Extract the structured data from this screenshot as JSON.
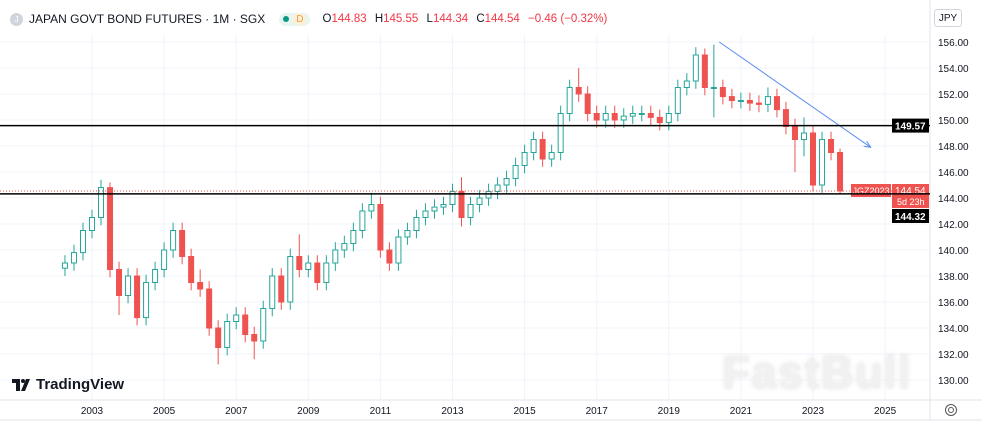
{
  "header": {
    "symbol_icon": "J",
    "title": "JAPAN GOVT BOND FUTURES · 1M · SGX",
    "delay_badge": "D",
    "ohlc": {
      "o_label": "O",
      "o": "144.83",
      "h_label": "H",
      "h": "145.55",
      "l_label": "L",
      "l": "144.34",
      "c_label": "C",
      "c": "144.54",
      "change": "−0.46 (−0.32%)"
    }
  },
  "currency": "JPY",
  "logo_text": "TradingView",
  "watermark": "FastBull",
  "colors": {
    "up": "#26a69a",
    "down": "#ef5350",
    "line": "#000000",
    "trend": "#5b8def",
    "label_red": "#ef5350"
  },
  "chart_data": {
    "type": "candlestick",
    "interval": "1M (shown aggregated quarterly)",
    "ylim": [
      129,
      157
    ],
    "xlim": [
      2000.6,
      2026.3
    ],
    "y_ticks": [
      "130.00",
      "132.00",
      "134.00",
      "136.00",
      "138.00",
      "140.00",
      "142.00",
      "144.00",
      "146.00",
      "148.00",
      "150.00",
      "152.00",
      "154.00",
      "156.00"
    ],
    "x_ticks": [
      "2003",
      "2005",
      "2007",
      "2009",
      "2011",
      "2013",
      "2015",
      "2017",
      "2019",
      "2021",
      "2023",
      "2025"
    ],
    "grid": true,
    "candles_fields": [
      "t",
      "open",
      "high",
      "low",
      "close"
    ],
    "candles": [
      [
        2002.25,
        138.6,
        139.6,
        138.0,
        139.0
      ],
      [
        2002.5,
        139.0,
        140.4,
        138.4,
        139.8
      ],
      [
        2002.75,
        139.8,
        142.1,
        139.2,
        141.5
      ],
      [
        2003.0,
        141.5,
        143.1,
        140.9,
        142.5
      ],
      [
        2003.25,
        142.5,
        145.4,
        141.9,
        144.8
      ],
      [
        2003.5,
        144.8,
        145.2,
        137.9,
        138.5
      ],
      [
        2003.75,
        138.5,
        139.1,
        135.0,
        136.5
      ],
      [
        2004.0,
        136.5,
        138.6,
        135.9,
        138.0
      ],
      [
        2004.25,
        138.0,
        138.6,
        134.2,
        134.8
      ],
      [
        2004.5,
        134.8,
        138.1,
        134.2,
        137.5
      ],
      [
        2004.75,
        137.5,
        139.1,
        136.9,
        138.5
      ],
      [
        2005.0,
        138.5,
        140.6,
        137.9,
        140.0
      ],
      [
        2005.25,
        140.0,
        142.1,
        139.4,
        141.5
      ],
      [
        2005.5,
        141.5,
        142.1,
        138.9,
        139.5
      ],
      [
        2005.75,
        139.5,
        140.1,
        136.9,
        137.5
      ],
      [
        2006.0,
        137.5,
        138.5,
        136.4,
        137.0
      ],
      [
        2006.25,
        137.0,
        137.6,
        133.4,
        134.0
      ],
      [
        2006.5,
        134.0,
        134.6,
        131.2,
        132.5
      ],
      [
        2006.75,
        132.5,
        135.1,
        131.9,
        134.5
      ],
      [
        2007.0,
        134.5,
        135.6,
        133.9,
        135.0
      ],
      [
        2007.25,
        135.0,
        135.6,
        132.9,
        133.5
      ],
      [
        2007.5,
        133.5,
        134.1,
        131.6,
        133.0
      ],
      [
        2007.75,
        133.0,
        136.1,
        132.4,
        135.5
      ],
      [
        2008.0,
        135.5,
        138.6,
        134.9,
        138.0
      ],
      [
        2008.25,
        138.0,
        138.6,
        135.4,
        136.0
      ],
      [
        2008.5,
        136.0,
        140.1,
        135.4,
        139.5
      ],
      [
        2008.75,
        139.5,
        141.2,
        137.9,
        138.5
      ],
      [
        2009.0,
        138.5,
        139.6,
        137.9,
        139.0
      ],
      [
        2009.25,
        139.0,
        139.6,
        136.9,
        137.5
      ],
      [
        2009.5,
        137.5,
        139.6,
        136.9,
        139.0
      ],
      [
        2009.75,
        139.0,
        140.6,
        138.4,
        140.0
      ],
      [
        2010.0,
        140.0,
        141.1,
        139.4,
        140.5
      ],
      [
        2010.25,
        140.5,
        142.1,
        139.9,
        141.5
      ],
      [
        2010.5,
        141.5,
        143.6,
        140.9,
        143.0
      ],
      [
        2010.75,
        143.0,
        144.4,
        142.4,
        143.5
      ],
      [
        2011.0,
        143.5,
        144.1,
        139.4,
        140.0
      ],
      [
        2011.25,
        140.0,
        140.6,
        138.4,
        139.0
      ],
      [
        2011.5,
        139.0,
        141.6,
        138.4,
        141.0
      ],
      [
        2011.75,
        141.0,
        142.1,
        140.4,
        141.5
      ],
      [
        2012.0,
        141.5,
        143.1,
        140.9,
        142.5
      ],
      [
        2012.25,
        142.5,
        143.6,
        141.9,
        143.0
      ],
      [
        2012.5,
        143.0,
        143.9,
        142.4,
        143.3
      ],
      [
        2012.75,
        143.3,
        144.1,
        142.7,
        143.5
      ],
      [
        2013.0,
        143.5,
        145.1,
        142.9,
        144.5
      ],
      [
        2013.25,
        144.5,
        145.6,
        141.8,
        142.5
      ],
      [
        2013.5,
        142.5,
        144.1,
        141.9,
        143.5
      ],
      [
        2013.75,
        143.5,
        144.6,
        142.9,
        144.0
      ],
      [
        2014.0,
        144.0,
        145.1,
        143.4,
        144.5
      ],
      [
        2014.25,
        144.5,
        145.6,
        143.9,
        145.0
      ],
      [
        2014.5,
        145.0,
        146.1,
        144.4,
        145.5
      ],
      [
        2014.75,
        145.5,
        147.1,
        144.9,
        146.5
      ],
      [
        2015.0,
        146.5,
        148.1,
        145.9,
        147.5
      ],
      [
        2015.25,
        147.5,
        149.1,
        146.9,
        148.5
      ],
      [
        2015.5,
        148.5,
        149.1,
        146.4,
        147.0
      ],
      [
        2015.75,
        147.0,
        148.1,
        146.4,
        147.5
      ],
      [
        2016.0,
        147.5,
        151.1,
        146.9,
        150.5
      ],
      [
        2016.25,
        150.5,
        153.1,
        149.9,
        152.5
      ],
      [
        2016.5,
        152.5,
        154.0,
        151.4,
        152.0
      ],
      [
        2016.75,
        152.0,
        152.6,
        149.9,
        150.5
      ],
      [
        2017.0,
        150.5,
        151.1,
        149.4,
        150.0
      ],
      [
        2017.25,
        150.0,
        151.1,
        149.4,
        150.5
      ],
      [
        2017.5,
        150.5,
        151.1,
        149.4,
        150.0
      ],
      [
        2017.75,
        150.0,
        150.9,
        149.4,
        150.3
      ],
      [
        2018.0,
        150.3,
        151.1,
        149.7,
        150.5
      ],
      [
        2018.25,
        150.5,
        151.1,
        149.9,
        150.5
      ],
      [
        2018.5,
        150.5,
        151.1,
        149.6,
        150.2
      ],
      [
        2018.75,
        150.2,
        150.8,
        149.2,
        149.8
      ],
      [
        2019.0,
        149.8,
        151.1,
        149.2,
        150.5
      ],
      [
        2019.25,
        150.5,
        153.1,
        149.9,
        152.5
      ],
      [
        2019.5,
        152.5,
        153.6,
        151.9,
        153.0
      ],
      [
        2019.75,
        153.0,
        155.6,
        152.4,
        155.0
      ],
      [
        2020.0,
        155.0,
        155.5,
        151.9,
        152.5
      ],
      [
        2020.25,
        152.5,
        155.8,
        150.2,
        152.5
      ],
      [
        2020.5,
        152.5,
        153.1,
        151.2,
        151.8
      ],
      [
        2020.75,
        151.8,
        152.4,
        150.9,
        151.5
      ],
      [
        2021.0,
        151.5,
        152.1,
        150.9,
        151.5
      ],
      [
        2021.25,
        151.5,
        152.1,
        150.7,
        151.3
      ],
      [
        2021.5,
        151.3,
        151.9,
        150.6,
        151.2
      ],
      [
        2021.75,
        151.2,
        152.5,
        150.6,
        151.8
      ],
      [
        2022.0,
        151.8,
        152.4,
        150.2,
        150.8
      ],
      [
        2022.25,
        150.8,
        151.4,
        148.9,
        149.5
      ],
      [
        2022.5,
        149.5,
        150.1,
        146.0,
        148.5
      ],
      [
        2022.75,
        148.5,
        150.2,
        147.2,
        149.0
      ],
      [
        2023.0,
        149.0,
        149.6,
        144.5,
        145.0
      ],
      [
        2023.25,
        145.0,
        149.1,
        144.4,
        148.5
      ],
      [
        2023.5,
        148.5,
        149.1,
        146.9,
        147.5
      ],
      [
        2023.75,
        147.5,
        147.8,
        144.34,
        144.54
      ]
    ],
    "horizontal_lines": [
      {
        "price": 149.57,
        "label": "149.57"
      },
      {
        "price": 144.32,
        "label": "144.32"
      }
    ],
    "trendline": {
      "from": [
        2020.4,
        156.0
      ],
      "to": [
        2024.6,
        147.9
      ]
    },
    "last_price": {
      "symbol": "JGZ2023",
      "value": "144.54",
      "countdown": "5d 23h"
    }
  }
}
